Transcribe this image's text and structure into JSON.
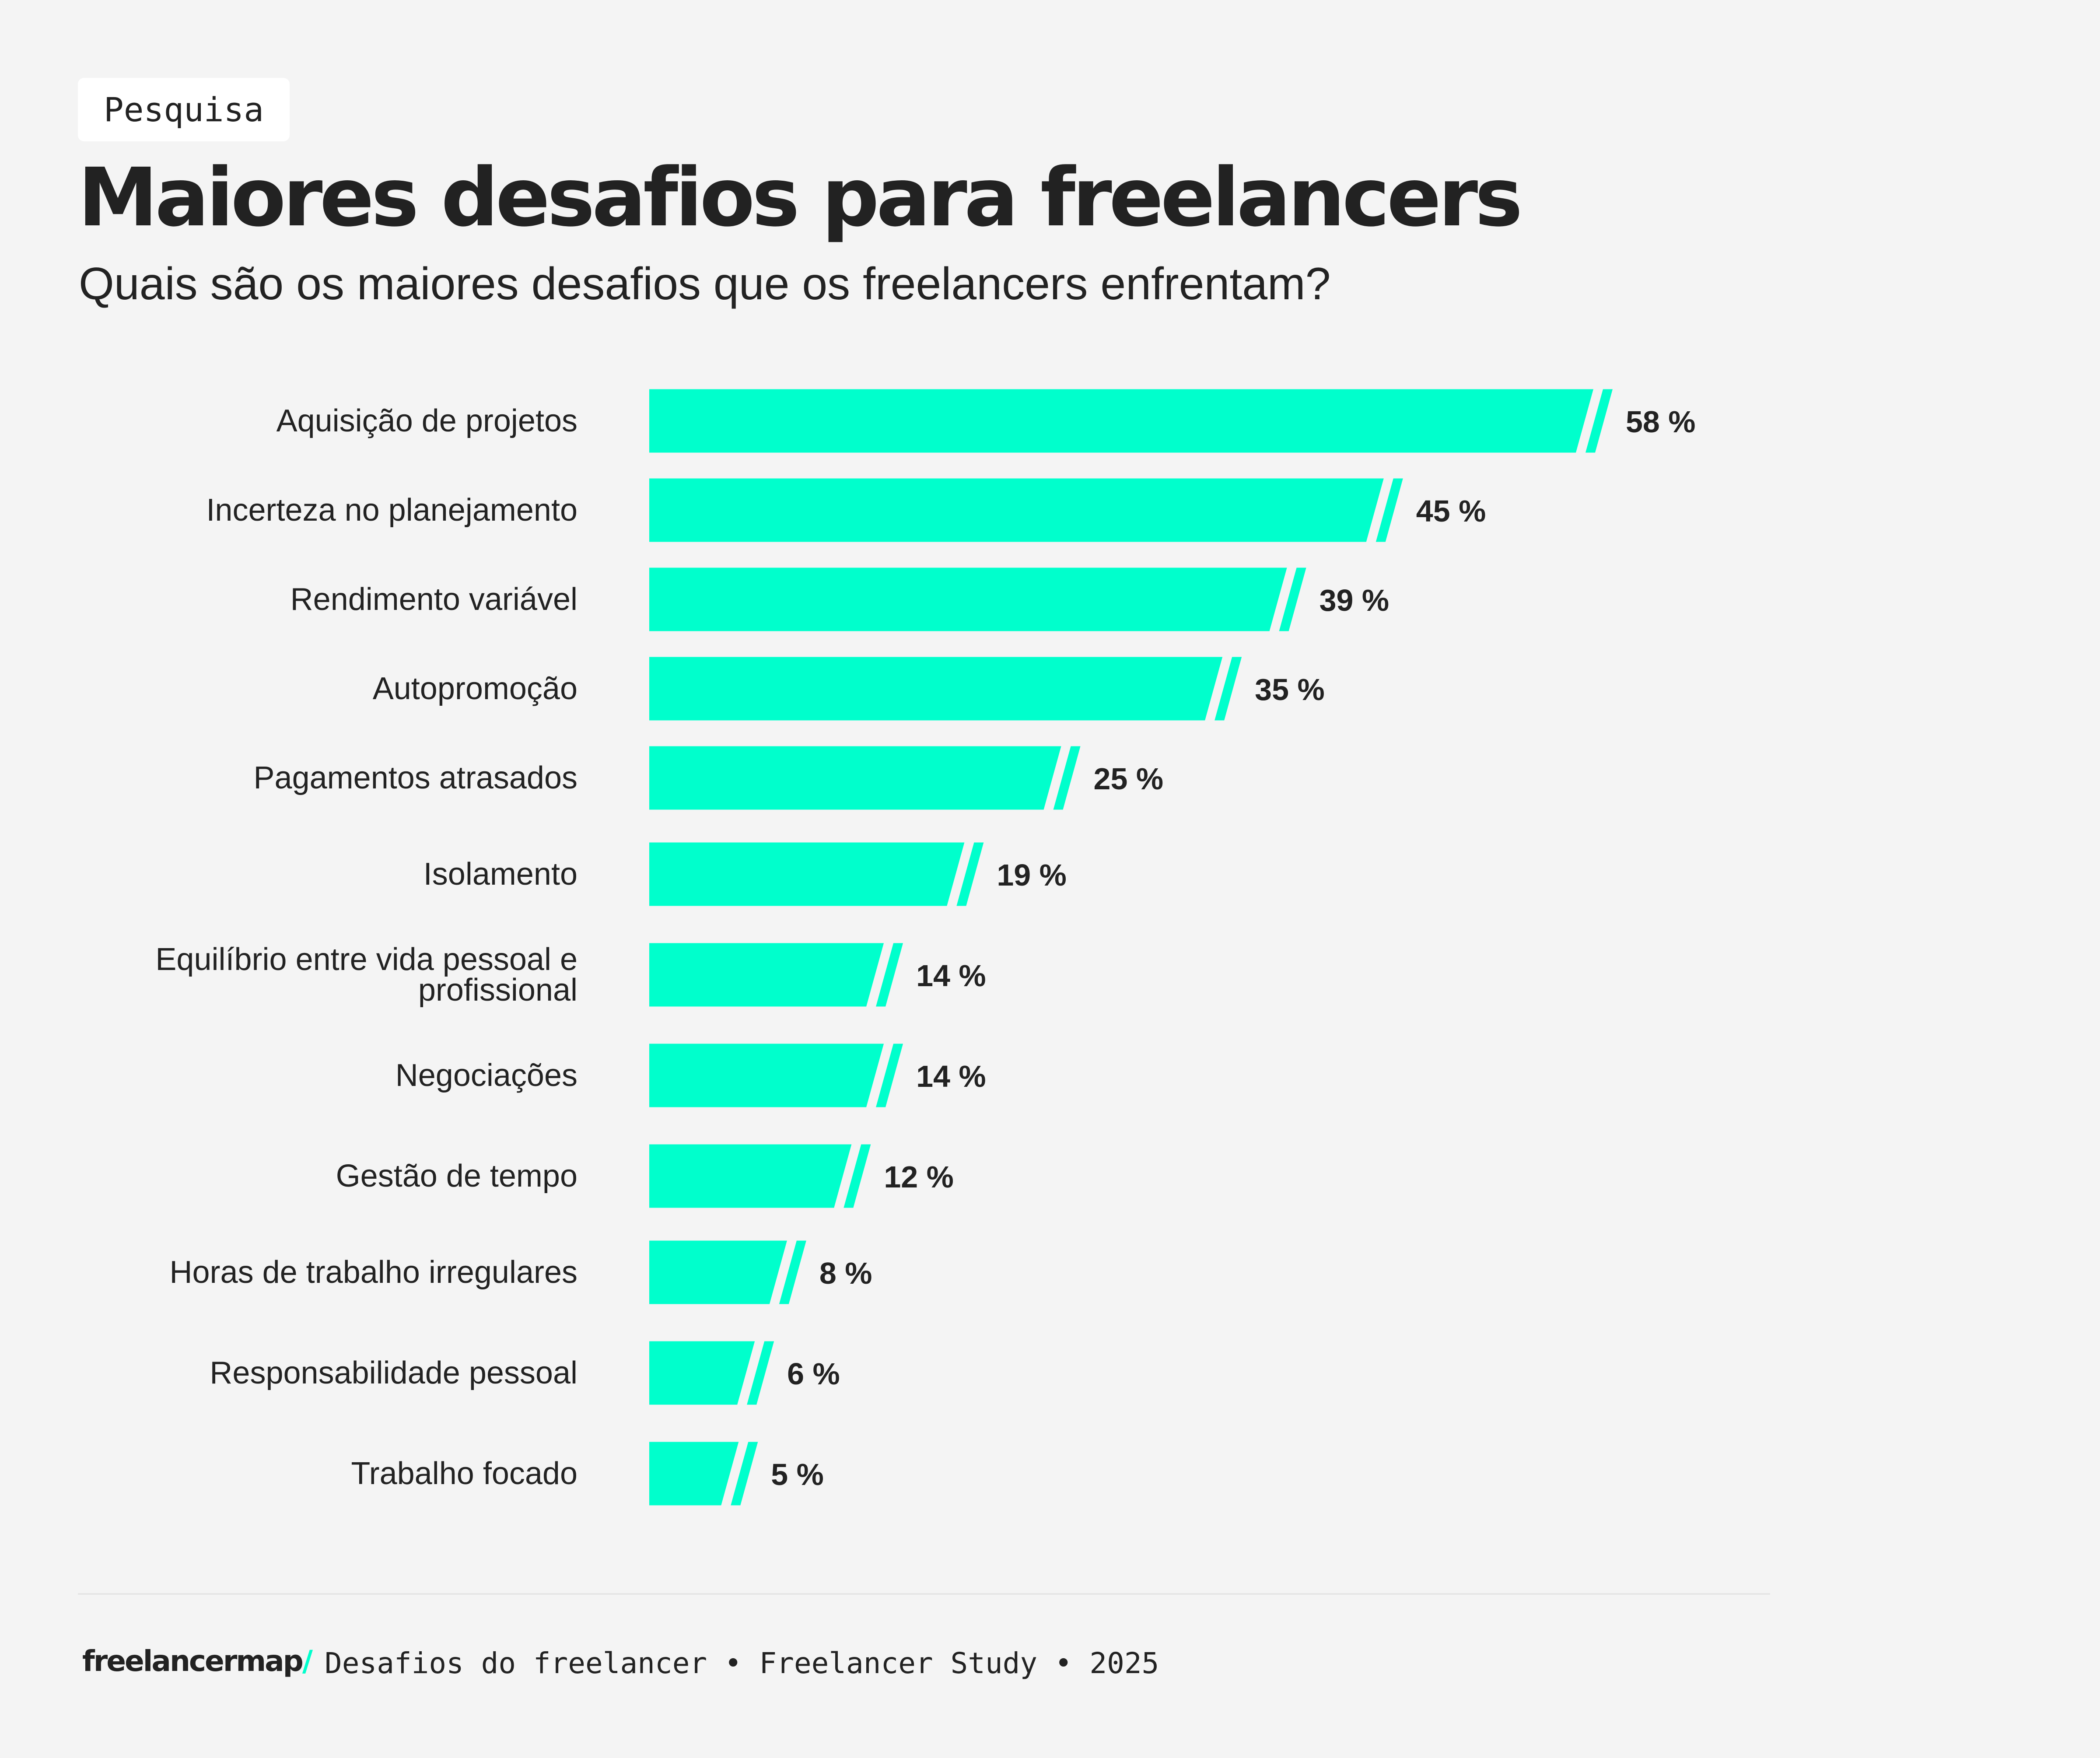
{
  "header": {
    "tag": "Pesquisa",
    "title": "Maiores desafios para freelancers",
    "subtitle": "Quais são os maiores desafios que os freelancers enfrentam?"
  },
  "chart_data": {
    "type": "bar",
    "orientation": "horizontal",
    "title": "Maiores desafios para freelancers",
    "subtitle": "Quais são os maiores desafios que os freelancers enfrentam?",
    "categories": [
      [
        "Aquisição de projetos"
      ],
      [
        "Incerteza no planejamento"
      ],
      [
        "Rendimento variável"
      ],
      [
        "Autopromoção"
      ],
      [
        "Pagamentos atrasados"
      ],
      [
        "Isolamento"
      ],
      [
        "Equilíbrio entre vida pessoal e",
        "profissional"
      ],
      [
        "Negociações"
      ],
      [
        "Gestão de tempo"
      ],
      [
        "Horas de trabalho irregulares"
      ],
      [
        "Responsabilidade pessoal"
      ],
      [
        "Trabalho focado"
      ]
    ],
    "values": [
      58,
      45,
      39,
      35,
      25,
      19,
      14,
      14,
      12,
      8,
      6,
      5
    ],
    "value_labels": [
      "58 %",
      "45 %",
      "39 %",
      "35 %",
      "25 %",
      "19 %",
      "14 %",
      "14 %",
      "12 %",
      "8 %",
      "6 %",
      "5 %"
    ],
    "unit": "%",
    "bar_color": "#00ffcc",
    "xlim": [
      0,
      58
    ],
    "grid": false,
    "legend": "none"
  },
  "footer": {
    "brand": "freelancermap",
    "brand_slash": "/",
    "text": "Desafios do freelancer • Freelancer Study • 2025"
  },
  "colors": {
    "background": "#f4f4f4",
    "accent": "#00ffcc",
    "text": "#222222"
  }
}
